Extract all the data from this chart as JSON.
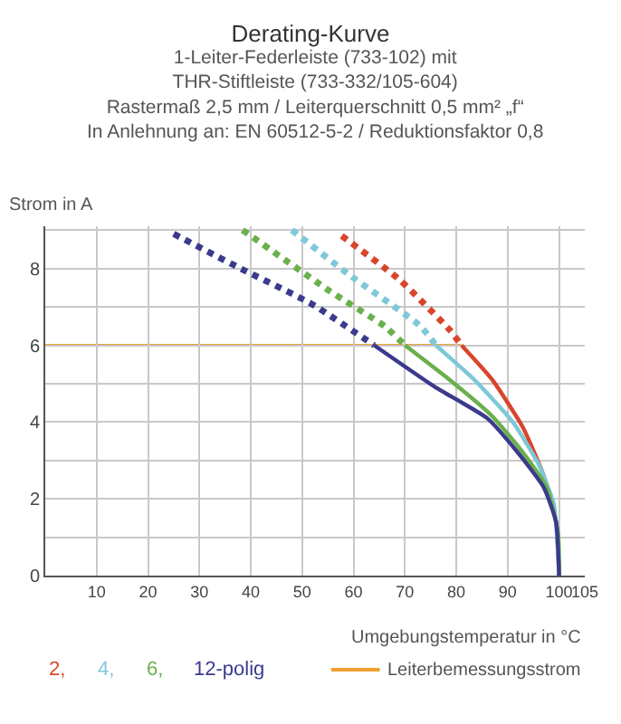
{
  "chart_data": {
    "type": "line",
    "title": "Derating-Kurve",
    "subtitle": "1-Leiter-Federleiste (733-102) mit\nTHR-Stiftleiste (733-332/105-604)\nRastermaß 2,5 mm / Leiterquerschnitt 0,5 mm² „f“\nIn Anlehnung an: EN 60512-5-2 / Reduktionsfaktor 0,8",
    "xlabel": "Umgebungstemperatur in °C",
    "ylabel": "Strom in A",
    "xlim": [
      0,
      105
    ],
    "ylim": [
      0,
      9.1
    ],
    "xticks": [
      {
        "value": 0,
        "label": null
      },
      10,
      20,
      30,
      40,
      50,
      60,
      70,
      80,
      90,
      100,
      105
    ],
    "yticks": [
      0,
      {
        "value": 1,
        "label": null
      },
      2,
      {
        "value": 3,
        "label": null
      },
      4,
      {
        "value": 5,
        "label": null
      },
      6,
      {
        "value": 7,
        "label": null
      },
      8,
      {
        "value": 9,
        "label": null
      }
    ],
    "grid": true,
    "legend": "bottom",
    "ref_lines": [
      {
        "axis": "y",
        "value": 6,
        "label": "Leiterbemessungsstrom",
        "color": "#f0a030"
      }
    ],
    "series": [
      {
        "name": "2,",
        "color": "#d9452b",
        "line_style": "solid",
        "x": [
          81,
          87,
          93,
          97,
          99.4,
          100
        ],
        "values": [
          6,
          5.1,
          3.85,
          2.6,
          1.4,
          0
        ]
      },
      {
        "name": "4,",
        "color": "#7ec8d8",
        "line_style": "solid",
        "x": [
          76,
          83.5,
          91,
          96,
          99,
          100
        ],
        "values": [
          6,
          5.1,
          4.0,
          2.9,
          1.85,
          0
        ]
      },
      {
        "name": "6,",
        "color": "#6ab04c",
        "line_style": "solid",
        "x": [
          70,
          78.7,
          87,
          93,
          97.6,
          99.8,
          100
        ],
        "values": [
          6,
          5.1,
          4.15,
          3.2,
          2.3,
          1.1,
          0
        ]
      },
      {
        "name": "12-polig",
        "color": "#3b3a8c",
        "line_style": "solid",
        "x": [
          64,
          76,
          86,
          92,
          97,
          99.4,
          100
        ],
        "values": [
          6,
          4.9,
          4.1,
          3.2,
          2.3,
          1.4,
          0
        ]
      },
      {
        "color": "#d9452b",
        "line_style": "dotted",
        "x": [
          57.7,
          69,
          78.7,
          81
        ],
        "values": [
          8.85,
          7.7,
          6.4,
          6
        ]
      },
      {
        "color": "#7ec8d8",
        "line_style": "dotted",
        "x": [
          48,
          59,
          73,
          76
        ],
        "values": [
          9,
          7.85,
          6.5,
          6
        ]
      },
      {
        "color": "#6ab04c",
        "line_style": "dotted",
        "x": [
          38.4,
          55.5,
          66,
          70
        ],
        "values": [
          9,
          7.4,
          6.5,
          6
        ]
      },
      {
        "color": "#3b3a8c",
        "line_style": "dotted",
        "x": [
          25,
          38,
          51.8,
          64
        ],
        "values": [
          8.9,
          8.0,
          7.08,
          6
        ]
      }
    ]
  }
}
